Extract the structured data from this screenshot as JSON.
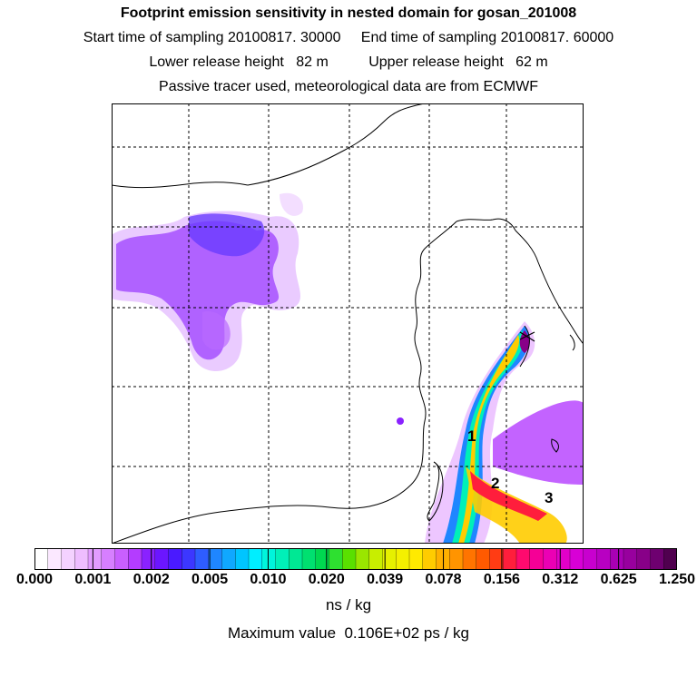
{
  "header": {
    "title": "Footprint emission sensitivity in nested domain for gosan_201008",
    "line1": "Start time of sampling 20100817. 30000     End time of sampling 20100817. 60000",
    "line2": "Lower release height   82 m          Upper release height   62 m",
    "line3": "Passive tracer used, meteorological data are from ECMWF"
  },
  "map": {
    "markers": [
      "1",
      "2",
      "3"
    ],
    "release_site": "gosan",
    "grid": "dashed lat/lon grid",
    "colors": {
      "land_outline": "#000000",
      "grid": "#000000",
      "background": "#ffffff"
    }
  },
  "colorbar": {
    "tick_labels": [
      "0.000",
      "0.001",
      "0.002",
      "0.005",
      "0.010",
      "0.020",
      "0.039",
      "0.078",
      "0.156",
      "0.312",
      "0.625",
      "1.250"
    ],
    "colors": [
      "#ffffff",
      "#fbe8ff",
      "#f4d2ff",
      "#eebdff",
      "#e29cff",
      "#d77fff",
      "#c95fff",
      "#b43cff",
      "#8a22ff",
      "#6b16ff",
      "#4a1aff",
      "#3c37ff",
      "#2e5dff",
      "#1f86ff",
      "#10a8ff",
      "#00c5ff",
      "#00eeff",
      "#00f5dc",
      "#00f0b8",
      "#00e894",
      "#00e070",
      "#00d850",
      "#2ee030",
      "#5ae000",
      "#9ae600",
      "#c8ee00",
      "#e6f000",
      "#f4f000",
      "#ffea00",
      "#ffcc00",
      "#ffb000",
      "#ff9400",
      "#ff7400",
      "#ff5a00",
      "#ff3c14",
      "#ff1e3c",
      "#ff0a6e",
      "#f50096",
      "#eb00b4",
      "#e100c8",
      "#d800d6",
      "#c800cf",
      "#b800c2",
      "#a800b4",
      "#98009e",
      "#880088",
      "#6e0070",
      "#50004f"
    ],
    "units": "ns / kg"
  },
  "footer": {
    "max_value": "Maximum value  0.106E+02 ps / kg"
  }
}
